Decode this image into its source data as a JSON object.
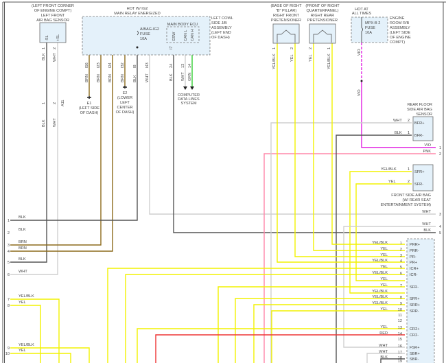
{
  "colors": {
    "BLK": "#555555",
    "WHT": "#cfcfcf",
    "BRN": "#8b6a1a",
    "YEL": "#f2f200",
    "GRN": "#33cc33",
    "VIO": "#e020e0",
    "PNK": "#ff88aa",
    "RED": "#ee3333"
  },
  "lf_sensor": {
    "line1": "(LEFT FRONT CORNER",
    "line2": "OF ENGINE COMPT)",
    "line3": "LEFT FRONT",
    "line4": "AIR BAG SENSOR",
    "pin_a": "-SL",
    "pin_b": "+SL",
    "num_a": "1",
    "num_b": "2",
    "wire_a": "BLK",
    "wire_b": "WHT",
    "conn_a": "1",
    "conn_b": "2",
    "conn_id": "A11",
    "wire_a2": "BLK",
    "wire_b2": "WHT"
  },
  "relay": {
    "hot1": "HOT W/ IG2",
    "hot2": "MAIN RELAY ENERGIZED",
    "fuse1": "A/BAG-IG2",
    "fuse2": "FUSE",
    "fuse3": "10A",
    "side1": "LEFT COWL",
    "side2": "SIDE J/B",
    "side3": "ASSEMBLY",
    "side4": "(LEFT END",
    "side5": "OF DASH)",
    "ecu": "MAIN BODY ECU",
    "ecu_pins": [
      "GSW",
      "CAN L",
      "CAN H"
    ],
    "pins": [
      "I56",
      "I23",
      "I24",
      "I32",
      "I8",
      "I43",
      "24",
      "13",
      "14"
    ],
    "pin_i7": "I7",
    "wires": [
      "BRN",
      "BRN",
      "BRN",
      "BRN",
      "BLK",
      "WHT",
      "BLK",
      "WHT",
      "GRN"
    ]
  },
  "grounds": {
    "e1": "E1",
    "e1_a": "(LEFT SIDE",
    "e1_b": "OF DASH)",
    "e2": "E2",
    "e2_a": "(LOWER",
    "e2_b": "LEFT",
    "e2_c": "CENTER",
    "e2_d": "OF DASH)"
  },
  "cdl": {
    "l1": "COMPUTER",
    "l2": "DATA LINES",
    "l3": "SYSTEM"
  },
  "rf_pret": {
    "l1": "(BASE OF RIGHT",
    "l2": "\"B\" PILLAR)",
    "l3": "RIGHT FRONT",
    "l4": "PRETENSIONER",
    "n1": "1",
    "n2": "2",
    "w1": "YEL/BLK",
    "w2": "YEL"
  },
  "rr_pret": {
    "l1": "(FRONT OF RIGHT",
    "l2": "QUARTERPANEL)",
    "l3": "RIGHT REAR",
    "l4": "PRETENSIONER",
    "n1": "2",
    "n2": "1",
    "w1": "YEL",
    "w2": "YEL/BLK"
  },
  "mpx": {
    "hot1": "HOT AT",
    "hot2": "ALL TIMES",
    "f1": "MPX-B 2",
    "f2": "FUSE",
    "f3": "10A",
    "s1": "ENGINE",
    "s2": "ROOM R/B",
    "s3": "ASSEMBLY",
    "s4": "(LEFT SIDE",
    "s5": "OF ENGINE",
    "s6": "COMPT)",
    "w1": "VIO",
    "w2": "VIO"
  },
  "rear_floor": {
    "l1": "REAR FLOOR",
    "l2": "SIDE AIR BAG",
    "l3": "SENSOR",
    "p1": "BFR+",
    "p2": "BFR-",
    "n1": "2",
    "n2": "1",
    "w1": "WHT",
    "w2": "BLK"
  },
  "front_side": {
    "l1": "FRONT SIDE AIR BAG",
    "l2": "(W/ REAR SEAT",
    "l3": "ENTERTAINMENT SYSTEM)",
    "p1": "SFR+",
    "p2": "SFR-",
    "n1": "1",
    "n2": "2",
    "w1": "YEL/BLK",
    "w2": "YEL"
  },
  "right_edge": [
    {
      "n": "1",
      "w": "VIO"
    },
    {
      "n": "2",
      "w": "PNK"
    },
    {
      "n": "3",
      "w": "WHT"
    },
    {
      "n": "4",
      "w": "WHT"
    },
    {
      "n": "5",
      "w": "BLK"
    }
  ],
  "left_edge": [
    {
      "n": "1",
      "w": "BLK"
    },
    {
      "n": "2",
      "w": "BLK"
    },
    {
      "n": "3",
      "w": "BRN"
    },
    {
      "n": "4",
      "w": "BRN"
    },
    {
      "n": "5",
      "w": "BLK"
    },
    {
      "n": "6",
      "w": "WHT"
    },
    {
      "n": "7",
      "w": "YEL/BLK"
    },
    {
      "n": "8",
      "w": "YEL"
    },
    {
      "n": "9",
      "w": "YEL/BLK"
    },
    {
      "n": "10",
      "w": "YEL"
    }
  ],
  "ecu_conn": [
    {
      "n": "1",
      "w": "YEL/BLK",
      "p": "PRR+"
    },
    {
      "n": "2",
      "w": "YEL",
      "p": "PRR-"
    },
    {
      "n": "3",
      "w": "YEL",
      "p": "PR-"
    },
    {
      "n": "4",
      "w": "YEL/BLK",
      "p": "PR+"
    },
    {
      "n": "5",
      "w": "YEL",
      "p": "ICR+"
    },
    {
      "n": "6",
      "w": "YEL/BLK",
      "p": "ICR-"
    },
    {
      "n": "",
      "w": "YEL",
      "p": ""
    },
    {
      "n": "7",
      "w": "YEL",
      "p": "SFR-"
    },
    {
      "n": "",
      "w": "YEL/BLK",
      "p": ""
    },
    {
      "n": "8",
      "w": "YEL/BLK",
      "p": "SFR+"
    },
    {
      "n": "9",
      "w": "YEL/BLK",
      "p": "SRR+"
    },
    {
      "n": "10",
      "w": "YEL",
      "p": "SRR-"
    },
    {
      "n": "11",
      "w": "",
      "p": ""
    },
    {
      "n": "12",
      "w": "",
      "p": ""
    },
    {
      "n": "13",
      "w": "YEL",
      "p": "CR2+"
    },
    {
      "n": "14",
      "w": "RED",
      "p": "CR2-"
    },
    {
      "n": "15",
      "w": "",
      "p": ""
    },
    {
      "n": "16",
      "w": "WHT",
      "p": "FSR+"
    },
    {
      "n": "17",
      "w": "WHT",
      "p": "SBR+"
    },
    {
      "n": "18",
      "w": "BLK",
      "p": "SBR-"
    },
    {
      "n": "19",
      "w": "",
      "p": ""
    }
  ]
}
